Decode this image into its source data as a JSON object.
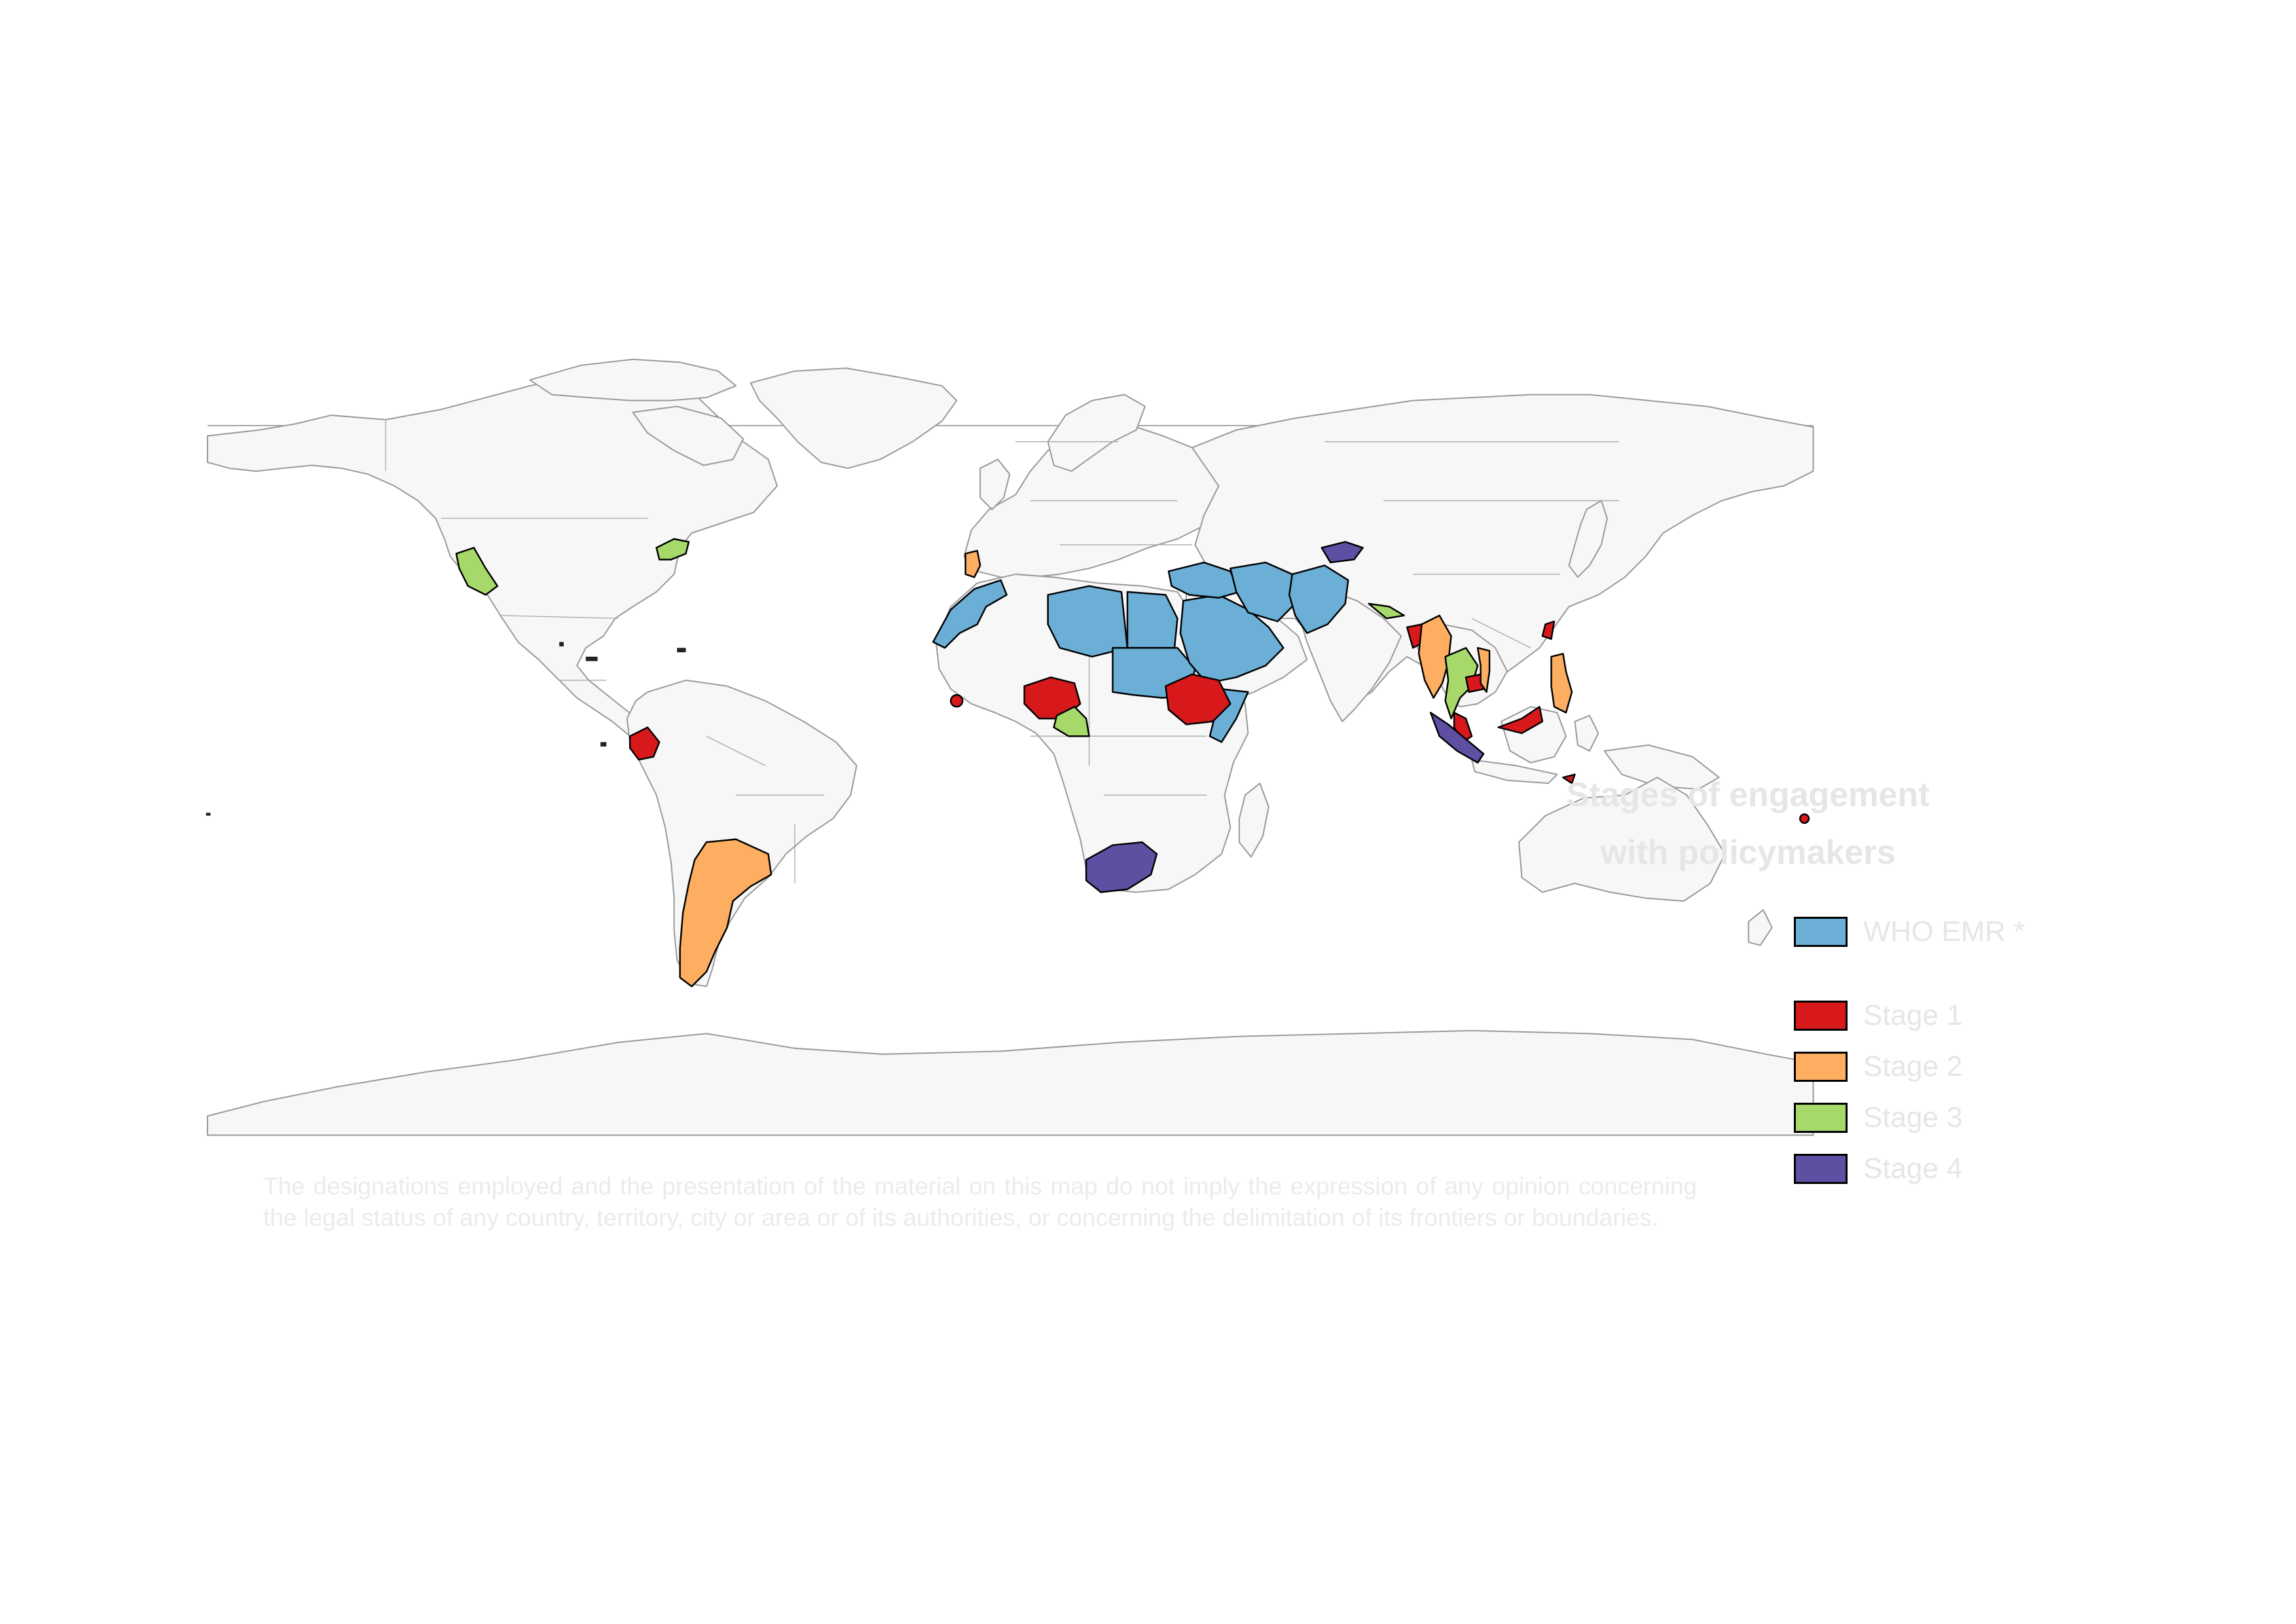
{
  "legend": {
    "title_line1": "Stages of engagement",
    "title_line2": "with policymakers",
    "items": [
      {
        "label": "WHO EMR *",
        "color": "#6baed6"
      },
      {
        "label": "Stage 1",
        "color": "#d7191c"
      },
      {
        "label": "Stage 2",
        "color": "#fdae61"
      },
      {
        "label": "Stage 3",
        "color": "#a6d96a"
      },
      {
        "label": "Stage 4",
        "color": "#5e4fa2"
      }
    ]
  },
  "disclaimer": "The designations employed and the presentation of the material on this map do not imply the expression of any opinion concerning the legal status of any country, territory, city or area or of its authorities, or concerning the delimitation of its frontiers or boundaries.",
  "map": {
    "land_color": "#f7f7f7",
    "border_color": "#9a9a9a",
    "highlight_border_color": "#000000",
    "regions": [
      {
        "name": "California",
        "category": "Stage 3"
      },
      {
        "name": "New York",
        "category": "Stage 3"
      },
      {
        "name": "Portugal",
        "category": "Stage 2"
      },
      {
        "name": "Ecuador",
        "category": "Stage 1"
      },
      {
        "name": "Argentina",
        "category": "Stage 2"
      },
      {
        "name": "Morocco",
        "category": "WHO EMR *"
      },
      {
        "name": "Libya",
        "category": "WHO EMR *"
      },
      {
        "name": "Egypt",
        "category": "WHO EMR *"
      },
      {
        "name": "Sudan",
        "category": "WHO EMR *"
      },
      {
        "name": "Saudi Arabia",
        "category": "WHO EMR *"
      },
      {
        "name": "Iran",
        "category": "WHO EMR *"
      },
      {
        "name": "Afghanistan",
        "category": "WHO EMR *"
      },
      {
        "name": "Pakistan",
        "category": "WHO EMR *"
      },
      {
        "name": "Somalia",
        "category": "WHO EMR *"
      },
      {
        "name": "Sierra Leone",
        "category": "Stage 1"
      },
      {
        "name": "Nigeria",
        "category": "Stage 1"
      },
      {
        "name": "Cameroon",
        "category": "Stage 3"
      },
      {
        "name": "Ethiopia",
        "category": "Stage 1"
      },
      {
        "name": "South Africa",
        "category": "Stage 4"
      },
      {
        "name": "Kyrgyzstan",
        "category": "Stage 4"
      },
      {
        "name": "Nepal",
        "category": "Stage 3"
      },
      {
        "name": "Bangladesh",
        "category": "Stage 1"
      },
      {
        "name": "Myanmar",
        "category": "Stage 2"
      },
      {
        "name": "Thailand",
        "category": "Stage 3"
      },
      {
        "name": "Lao PDR",
        "category": "Stage 3"
      },
      {
        "name": "Cambodia",
        "category": "Stage 1"
      },
      {
        "name": "Vietnam",
        "category": "Stage 2"
      },
      {
        "name": "Taiwan",
        "category": "Stage 1"
      },
      {
        "name": "Philippines",
        "category": "Stage 2"
      },
      {
        "name": "Malaysia",
        "category": "Stage 1"
      },
      {
        "name": "Sumatra",
        "category": "Stage 4"
      },
      {
        "name": "Timor-Leste",
        "category": "Stage 1"
      },
      {
        "name": "Fiji",
        "category": "Stage 1"
      }
    ]
  }
}
